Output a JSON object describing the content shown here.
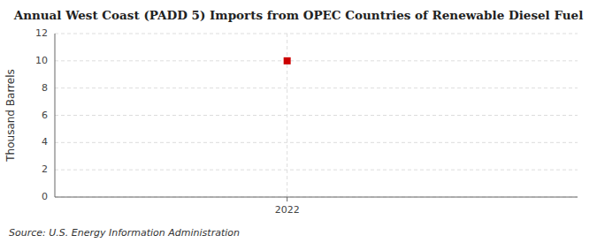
{
  "chart_data": {
    "type": "scatter",
    "title": "Annual West Coast (PADD 5) Imports from OPEC Countries of Renewable Diesel Fuel",
    "ylabel": "Thousand Barrels",
    "source": "Source: U.S. Energy Information Administration",
    "x": [
      2022
    ],
    "values": [
      10
    ],
    "color": "#cc0000",
    "marker": "square",
    "xlim": [
      2021.6,
      2022.5
    ],
    "xticks": [
      2022
    ],
    "ylim": [
      0,
      12
    ],
    "yticks": [
      0,
      2,
      4,
      6,
      8,
      10,
      12
    ],
    "grid": true
  }
}
